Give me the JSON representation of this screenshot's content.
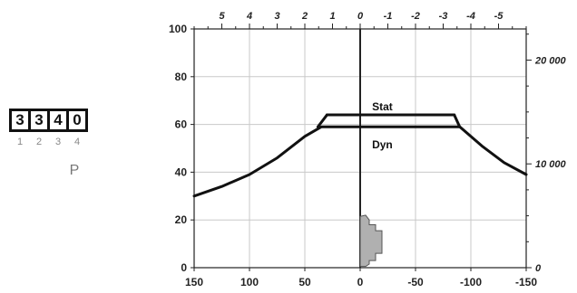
{
  "code_panel": {
    "digits": [
      "3",
      "3",
      "4",
      "0"
    ],
    "indices": [
      "1",
      "2",
      "3",
      "4"
    ],
    "label": "P"
  },
  "chart_data": {
    "type": "line",
    "title": "",
    "xlabel": "",
    "ylabel": "",
    "x_ticks": [
      "150",
      "100",
      "50",
      "0",
      "-50",
      "-100",
      "-150"
    ],
    "x_range": [
      150,
      -150
    ],
    "y_ticks": [
      "0",
      "20",
      "40",
      "60",
      "80",
      "100"
    ],
    "y_range": [
      0,
      100
    ],
    "top_axis_ticks": [
      "5",
      "4",
      "3",
      "2",
      "1",
      "0",
      "-1",
      "-2",
      "-3",
      "-4",
      "-5"
    ],
    "top_axis_range": [
      6,
      -6
    ],
    "right_axis_ticks": [
      "0",
      "10 000",
      "20 000"
    ],
    "right_axis_range": [
      0,
      23000
    ],
    "grid": true,
    "series": [
      {
        "name": "Stat",
        "x": [
          30,
          20,
          10,
          0,
          -20,
          -40,
          -60,
          -80,
          -85
        ],
        "y": [
          64,
          64,
          64,
          64,
          64,
          64,
          64,
          64,
          64
        ]
      },
      {
        "name": "Dyn",
        "x": [
          150,
          125,
          100,
          75,
          50,
          35,
          0,
          -50,
          -90,
          -110,
          -130,
          -150
        ],
        "y": [
          30,
          34,
          39,
          46,
          55,
          59,
          59,
          59,
          59,
          51,
          44,
          39
        ]
      }
    ],
    "annotations": [
      {
        "text": "Stat",
        "x": -20,
        "y": 66
      },
      {
        "text": "Dyn",
        "x": -20,
        "y": 50
      }
    ]
  }
}
